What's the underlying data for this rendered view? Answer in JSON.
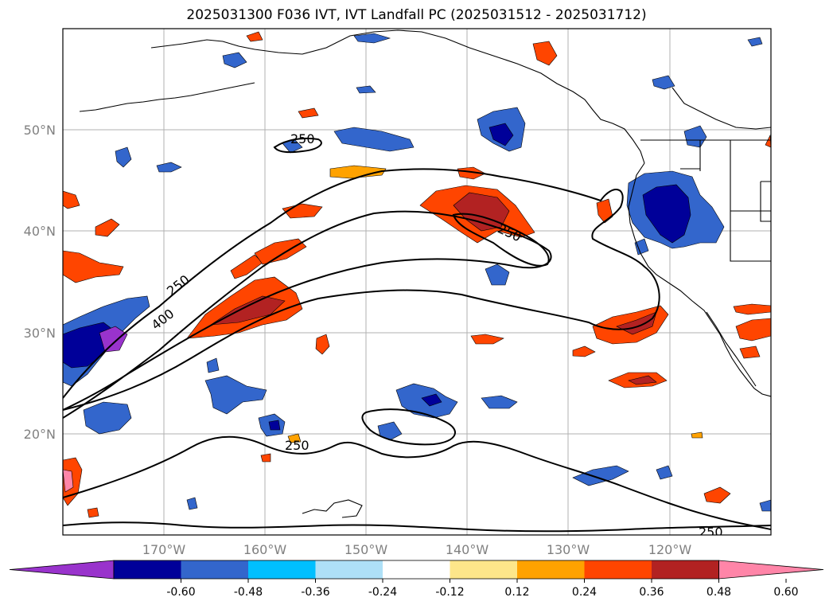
{
  "title": "2025031300 F036 IVT, IVT Landfall PC (2025031512 - 2025031712)",
  "map": {
    "lon_range": [
      180,
      110
    ],
    "lat_range": [
      10,
      60
    ],
    "lat_labels": [
      "20°N",
      "30°N",
      "40°N",
      "50°N"
    ],
    "lon_labels": [
      "170°W",
      "160°W",
      "150°W",
      "140°W",
      "130°W",
      "120°W"
    ],
    "contour_labels": [
      "250",
      "400",
      "250",
      "250",
      "250",
      "250"
    ]
  },
  "colorbar": {
    "colors": [
      "#9933cc",
      "#000099",
      "#3366cc",
      "#00bfff",
      "#aee0f7",
      "#ffffff",
      "#fde68a",
      "#ffa200",
      "#ff4500",
      "#b22222",
      "#ff85a8"
    ],
    "ticks": [
      "-0.60",
      "-0.48",
      "-0.36",
      "-0.24",
      "-0.12",
      "0.12",
      "0.24",
      "0.36",
      "0.48",
      "0.60"
    ],
    "extend": "both"
  },
  "colors": {
    "gridline": "#b0b0b0",
    "coast": "#000000",
    "label_gray": "#808080"
  }
}
